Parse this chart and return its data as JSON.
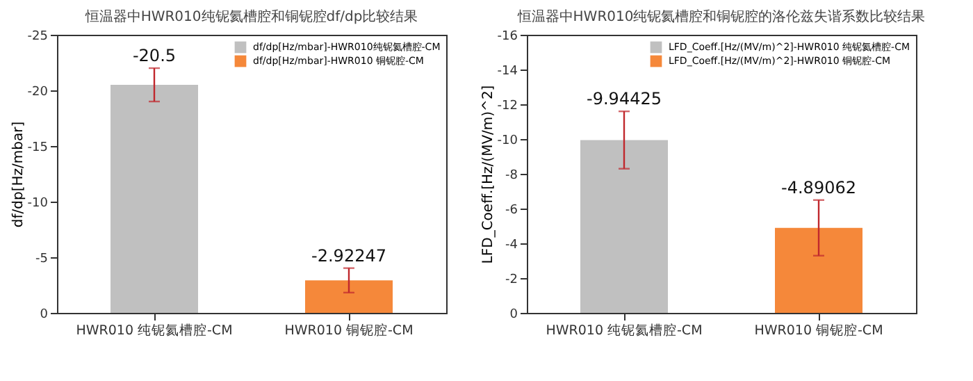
{
  "chart_data": [
    {
      "type": "bar",
      "title": "恒温器中HWR010纯铌氦槽腔和铜铌腔df/dp比较结果",
      "ylabel": "df/dp[Hz/mbar]",
      "categories": [
        "HWR010 纯铌氦槽腔-CM",
        "HWR010 铜铌腔-CM"
      ],
      "series": [
        {
          "name": "df/dp[Hz/mbar]-HWR010纯铌氦槽腔-CM",
          "color": "#c0c0c0",
          "values": [
            -20.5,
            null
          ],
          "errors": [
            1.5,
            null
          ]
        },
        {
          "name": "df/dp[Hz/mbar]-HWR010 铜铌腔-CM",
          "color": "#f5883a",
          "values": [
            null,
            -2.92247
          ],
          "errors": [
            null,
            1.1
          ]
        }
      ],
      "ylim": [
        0,
        -25
      ],
      "yticks": [
        0,
        -5,
        -10,
        -15,
        -20,
        -25
      ],
      "data_labels": true,
      "legend": "top right",
      "grid": false
    },
    {
      "type": "bar",
      "title": "恒温器中HWR010纯铌氦槽腔和铜铌腔的洛伦兹失谐系数比较结果",
      "ylabel": "LFD_Coeff.[Hz/(MV/m)^2]",
      "categories": [
        "HWR010 纯铌氦槽腔-CM",
        "HWR010 铜铌腔-CM"
      ],
      "series": [
        {
          "name": "LFD_Coeff.[Hz/(MV/m)^2]-HWR010 纯铌氦槽腔-CM",
          "color": "#c0c0c0",
          "values": [
            -9.94425,
            null
          ],
          "errors": [
            1.65,
            null
          ]
        },
        {
          "name": "LFD_Coeff.[Hz/(MV/m)^2]-HWR010 铜铌腔-CM",
          "color": "#f5883a",
          "values": [
            null,
            -4.89062
          ],
          "errors": [
            null,
            1.6
          ]
        }
      ],
      "ylim": [
        0,
        -16
      ],
      "yticks": [
        0,
        -2,
        -4,
        -6,
        -8,
        -10,
        -12,
        -14,
        -16
      ],
      "data_labels": true,
      "legend": "top right",
      "grid": false
    }
  ]
}
